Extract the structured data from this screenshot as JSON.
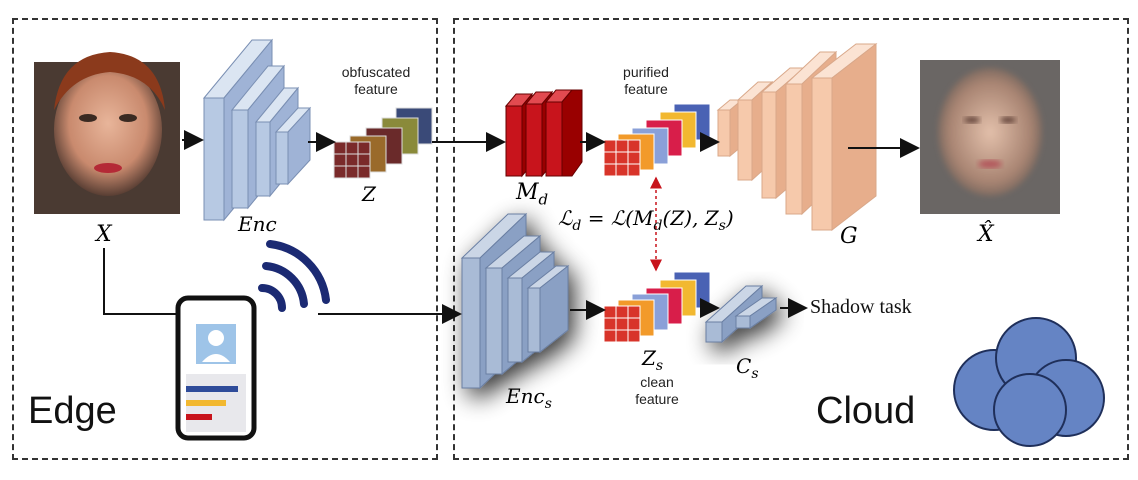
{
  "panels": {
    "edge_label": "Edge",
    "cloud_label": "Cloud"
  },
  "labels": {
    "x": "X",
    "enc": "Enc",
    "obfuscated_feature": "obfuscated feature",
    "z": "Z",
    "md": "M",
    "md_sub": "d",
    "purified_feature": "purified feature",
    "g": "G",
    "x_hat": "X̂",
    "loss": "ℒ",
    "loss_sub": "d",
    "loss_rhs": "= ℒ(M",
    "loss_rhs2": "(Z), Z",
    "loss_rhs3": ")",
    "loss_sub_d": "d",
    "loss_sub_s": "s",
    "enc_s": "Enc",
    "enc_s_sub": "s",
    "zs": "Z",
    "zs_sub": "s",
    "clean_feature": "clean feature",
    "cs": "C",
    "cs_sub": "s",
    "shadow_task": "Shadow task"
  },
  "colors": {
    "encoder": "#b7c9e3",
    "mask": "#c8141c",
    "generator": "#f6c9ab",
    "cloud": "#6584c4",
    "signal": "#1b2a73"
  }
}
